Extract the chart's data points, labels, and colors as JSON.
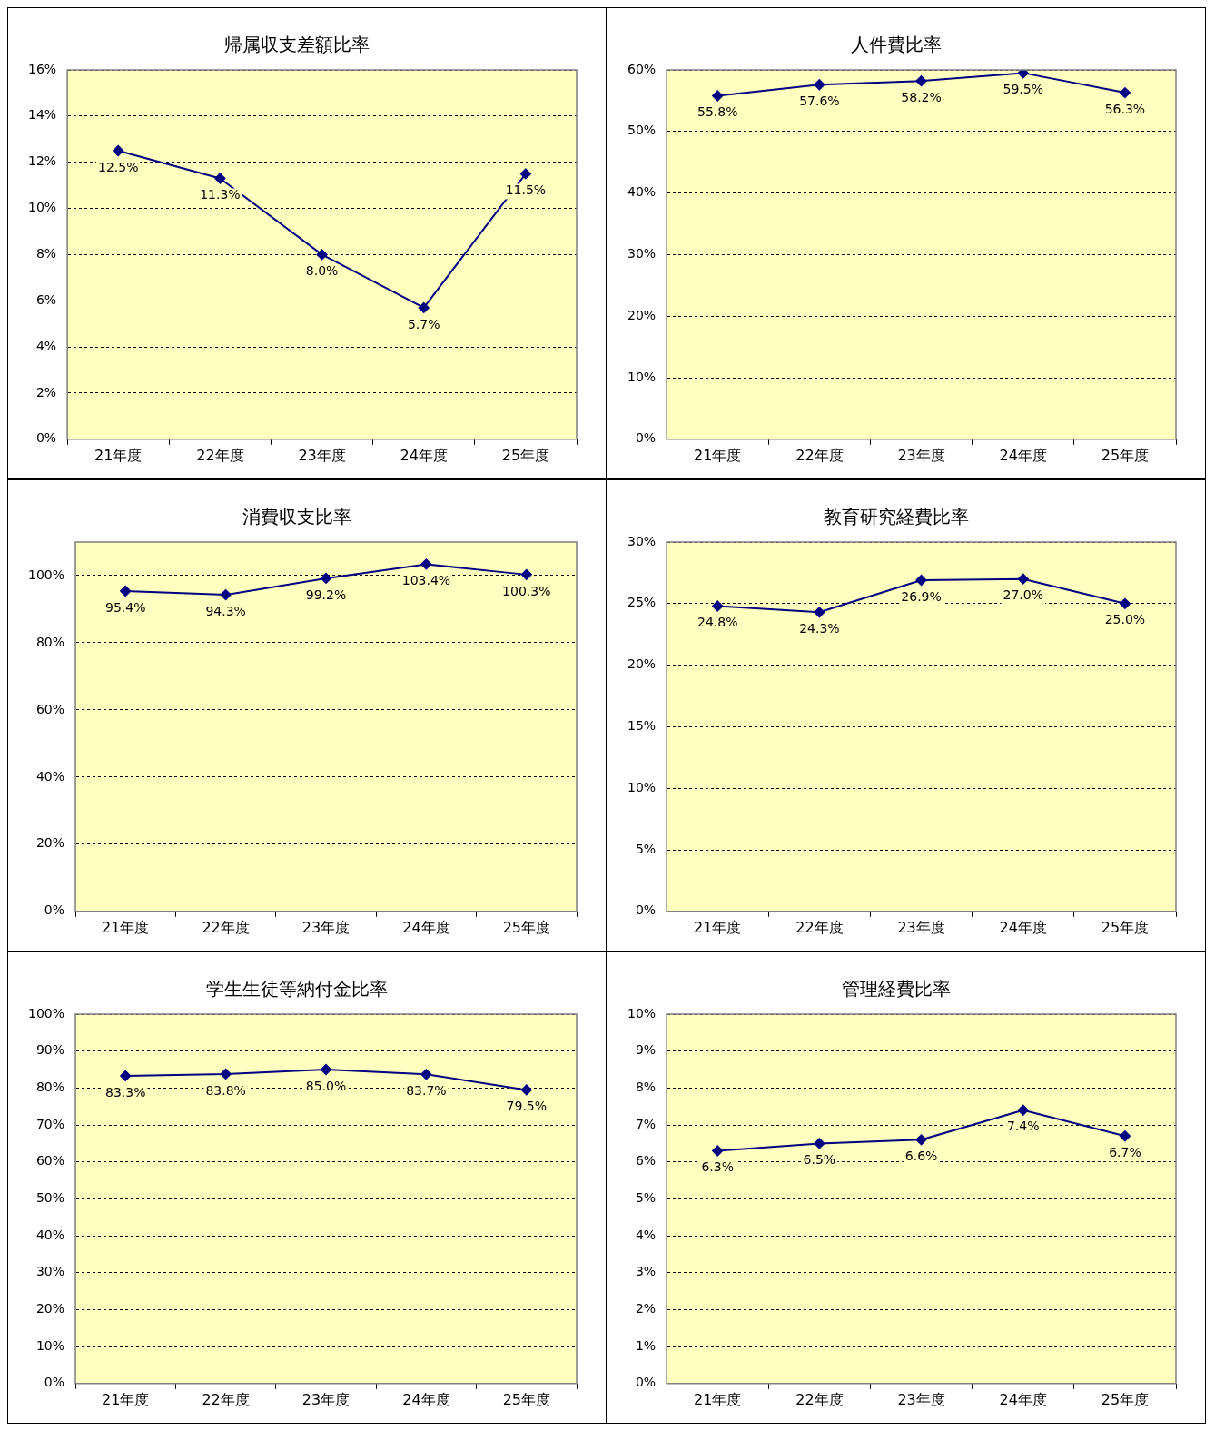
{
  "chart_data": [
    {
      "type": "line",
      "title": "帰属収支差額比率",
      "categories": [
        "21年度",
        "22年度",
        "23年度",
        "24年度",
        "25年度"
      ],
      "values": [
        12.5,
        11.3,
        8.0,
        5.7,
        11.5
      ],
      "value_labels": [
        "12.5%",
        "11.3%",
        "8.0%",
        "5.7%",
        "11.5%"
      ],
      "color": "#000080",
      "marker": "diamond",
      "grid": "y",
      "ylim": [
        0,
        16
      ],
      "yticks": [
        {
          "value": 0,
          "label": "0%"
        },
        {
          "value": 2,
          "label": "2%"
        },
        {
          "value": 4,
          "label": "4%"
        },
        {
          "value": 6,
          "label": "6%"
        },
        {
          "value": 8,
          "label": "8%"
        },
        {
          "value": 10,
          "label": "10%"
        },
        {
          "value": 12,
          "label": "12%"
        },
        {
          "value": 14,
          "label": "14%"
        },
        {
          "value": 16,
          "label": "16%"
        }
      ]
    },
    {
      "type": "line",
      "title": "人件費比率",
      "categories": [
        "21年度",
        "22年度",
        "23年度",
        "24年度",
        "25年度"
      ],
      "values": [
        55.8,
        57.6,
        58.2,
        59.5,
        56.3
      ],
      "value_labels": [
        "55.8%",
        "57.6%",
        "58.2%",
        "59.5%",
        "56.3%"
      ],
      "color": "#000080",
      "marker": "diamond",
      "grid": "y",
      "ylim": [
        0,
        60
      ],
      "yticks": [
        {
          "value": 0,
          "label": "0%"
        },
        {
          "value": 10,
          "label": "10%"
        },
        {
          "value": 20,
          "label": "20%"
        },
        {
          "value": 30,
          "label": "30%"
        },
        {
          "value": 40,
          "label": "40%"
        },
        {
          "value": 50,
          "label": "50%"
        },
        {
          "value": 60,
          "label": "60%"
        }
      ]
    },
    {
      "type": "line",
      "title": "消費収支比率",
      "categories": [
        "21年度",
        "22年度",
        "23年度",
        "24年度",
        "25年度"
      ],
      "values": [
        95.4,
        94.3,
        99.2,
        103.4,
        100.3
      ],
      "value_labels": [
        "95.4%",
        "94.3%",
        "99.2%",
        "103.4%",
        "100.3%"
      ],
      "color": "#000080",
      "marker": "diamond",
      "grid": "y",
      "ylim": [
        0,
        110
      ],
      "yticks": [
        {
          "value": 0,
          "label": "0%"
        },
        {
          "value": 20,
          "label": "20%"
        },
        {
          "value": 40,
          "label": "40%"
        },
        {
          "value": 60,
          "label": "60%"
        },
        {
          "value": 80,
          "label": "80%"
        },
        {
          "value": 100,
          "label": "100%"
        }
      ]
    },
    {
      "type": "line",
      "title": "教育研究経費比率",
      "categories": [
        "21年度",
        "22年度",
        "23年度",
        "24年度",
        "25年度"
      ],
      "values": [
        24.8,
        24.3,
        26.9,
        27.0,
        25.0
      ],
      "value_labels": [
        "24.8%",
        "24.3%",
        "26.9%",
        "27.0%",
        "25.0%"
      ],
      "color": "#000080",
      "marker": "diamond",
      "grid": "y",
      "ylim": [
        0,
        30
      ],
      "yticks": [
        {
          "value": 0,
          "label": "0%"
        },
        {
          "value": 5,
          "label": "5%"
        },
        {
          "value": 10,
          "label": "10%"
        },
        {
          "value": 15,
          "label": "15%"
        },
        {
          "value": 20,
          "label": "20%"
        },
        {
          "value": 25,
          "label": "25%"
        },
        {
          "value": 30,
          "label": "30%"
        }
      ]
    },
    {
      "type": "line",
      "title": "学生生徒等納付金比率",
      "categories": [
        "21年度",
        "22年度",
        "23年度",
        "24年度",
        "25年度"
      ],
      "values": [
        83.3,
        83.8,
        85.0,
        83.7,
        79.5
      ],
      "value_labels": [
        "83.3%",
        "83.8%",
        "85.0%",
        "83.7%",
        "79.5%"
      ],
      "color": "#000080",
      "marker": "diamond",
      "grid": "y",
      "ylim": [
        0,
        100
      ],
      "yticks": [
        {
          "value": 0,
          "label": "0%"
        },
        {
          "value": 10,
          "label": "10%"
        },
        {
          "value": 20,
          "label": "20%"
        },
        {
          "value": 30,
          "label": "30%"
        },
        {
          "value": 40,
          "label": "40%"
        },
        {
          "value": 50,
          "label": "50%"
        },
        {
          "value": 60,
          "label": "60%"
        },
        {
          "value": 70,
          "label": "70%"
        },
        {
          "value": 80,
          "label": "80%"
        },
        {
          "value": 90,
          "label": "90%"
        },
        {
          "value": 100,
          "label": "100%"
        }
      ]
    },
    {
      "type": "line",
      "title": "管理経費比率",
      "categories": [
        "21年度",
        "22年度",
        "23年度",
        "24年度",
        "25年度"
      ],
      "values": [
        6.3,
        6.5,
        6.6,
        7.4,
        6.7
      ],
      "value_labels": [
        "6.3%",
        "6.5%",
        "6.6%",
        "7.4%",
        "6.7%"
      ],
      "color": "#000080",
      "marker": "diamond",
      "grid": "y",
      "ylim": [
        0,
        10
      ],
      "yticks": [
        {
          "value": 0,
          "label": "0%"
        },
        {
          "value": 1,
          "label": "1%"
        },
        {
          "value": 2,
          "label": "2%"
        },
        {
          "value": 3,
          "label": "3%"
        },
        {
          "value": 4,
          "label": "4%"
        },
        {
          "value": 5,
          "label": "5%"
        },
        {
          "value": 6,
          "label": "6%"
        },
        {
          "value": 7,
          "label": "7%"
        },
        {
          "value": 8,
          "label": "8%"
        },
        {
          "value": 9,
          "label": "9%"
        },
        {
          "value": 10,
          "label": "10%"
        }
      ]
    }
  ]
}
